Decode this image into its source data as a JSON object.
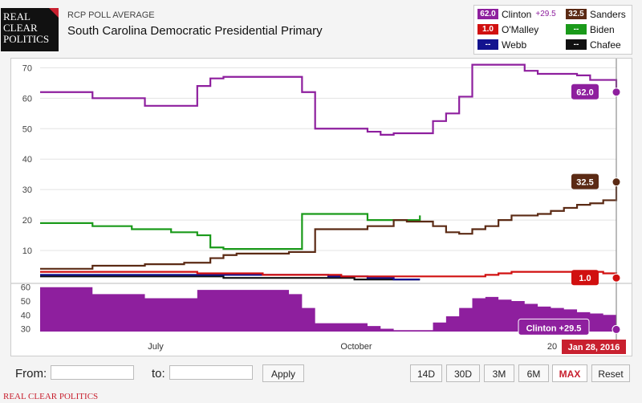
{
  "header": {
    "logo_lines": [
      "REAL",
      "CLEAR",
      "POLITICS"
    ],
    "kicker": "RCP POLL AVERAGE",
    "title": "South Carolina Democratic Presidential Primary"
  },
  "legend": [
    {
      "name": "Clinton",
      "value": "62.0",
      "spread": "+29.5",
      "color": "#8e1f9e"
    },
    {
      "name": "Sanders",
      "value": "32.5",
      "spread": "",
      "color": "#5b2a14"
    },
    {
      "name": "O'Malley",
      "value": "1.0",
      "spread": "",
      "color": "#d11010"
    },
    {
      "name": "Biden",
      "value": "--",
      "spread": "",
      "color": "#1a9a1a"
    },
    {
      "name": "Webb",
      "value": "--",
      "spread": "",
      "color": "#13138f"
    },
    {
      "name": "Chafee",
      "value": "--",
      "spread": "",
      "color": "#111111"
    }
  ],
  "chart_data": [
    {
      "type": "line",
      "title": "",
      "y_ticks": [
        10,
        20,
        30,
        40,
        50,
        60,
        70
      ],
      "ylim": [
        0,
        73
      ],
      "grid": true,
      "x_tick_labels": [
        "July",
        "October",
        "20"
      ],
      "end_badges": [
        "62.0",
        "32.5",
        "1.0"
      ],
      "series": [
        {
          "name": "Clinton",
          "color": "#8e1f9e",
          "values": [
            62,
            62,
            62,
            62,
            60,
            60,
            60,
            60,
            57.5,
            57.5,
            57.5,
            57.5,
            64,
            66.5,
            67,
            67,
            67,
            67,
            67,
            67,
            62,
            50,
            50,
            50,
            50,
            49,
            48,
            48.5,
            48.5,
            48.5,
            52.5,
            55,
            60.5,
            71,
            71,
            71,
            71,
            69,
            68,
            68,
            68,
            67.5,
            66,
            66,
            62
          ]
        },
        {
          "name": "Sanders",
          "color": "#5b2a14",
          "values": [
            4,
            4,
            4,
            4,
            5,
            5,
            5,
            5,
            5.5,
            5.5,
            5.5,
            6,
            6,
            7.5,
            8.5,
            9,
            9,
            9,
            9,
            9.5,
            9.5,
            17,
            17,
            17,
            17,
            18,
            18,
            20,
            19.5,
            19.5,
            18,
            16,
            15.5,
            17,
            18,
            20,
            21.5,
            21.5,
            22,
            23,
            24,
            25,
            25.5,
            26.5,
            32.5
          ]
        },
        {
          "name": "O'Malley",
          "color": "#d11010",
          "values": [
            3,
            3,
            3,
            3,
            3,
            3,
            3,
            3,
            3,
            3,
            3,
            3,
            2.5,
            2.5,
            2.5,
            2.5,
            2.5,
            2,
            2,
            2,
            2,
            2,
            2,
            1.5,
            1.5,
            1.5,
            1.5,
            1.5,
            1.5,
            1.5,
            1.5,
            1.5,
            1.5,
            1.5,
            2,
            2.5,
            3,
            3,
            3,
            3,
            3,
            3,
            3,
            2.5,
            1
          ]
        },
        {
          "name": "Biden",
          "color": "#1a9a1a",
          "values": [
            19,
            19,
            19,
            19,
            18,
            18,
            18,
            17,
            17,
            17,
            16,
            16,
            15,
            11,
            10.5,
            10.5,
            10.5,
            10.5,
            10.5,
            10.5,
            22,
            22,
            22,
            22,
            22,
            20,
            20,
            20,
            20,
            21.5
          ]
        },
        {
          "name": "Webb",
          "color": "#13138f",
          "values": [
            2,
            2,
            2,
            2,
            2,
            2,
            2,
            2,
            2,
            2,
            2,
            2,
            2,
            2,
            2,
            2,
            2,
            2,
            2,
            2,
            2,
            2,
            1.5,
            1.5,
            1.5,
            1,
            1,
            0.5,
            0.5,
            0.5
          ]
        },
        {
          "name": "Chafee",
          "color": "#111111",
          "values": [
            1.5,
            1.5,
            1.5,
            1.5,
            1.5,
            1.5,
            1.5,
            1.5,
            1.5,
            1.5,
            1.5,
            1.5,
            1.5,
            1.5,
            1,
            1,
            1,
            1,
            1,
            1,
            1,
            1,
            1,
            1,
            0.5,
            0.5,
            0.5,
            0.5,
            0.5,
            0.5
          ]
        }
      ]
    },
    {
      "type": "area",
      "title": "",
      "y_ticks": [
        30,
        40,
        50,
        60
      ],
      "ylim": [
        28,
        61
      ],
      "series": [
        {
          "name": "Clinton",
          "color": "#8e1f9e",
          "values": [
            60,
            60,
            60,
            60,
            55,
            55,
            55,
            55,
            52,
            52,
            52,
            52,
            58,
            58,
            58,
            58,
            58,
            58,
            58,
            55,
            45,
            34,
            34,
            34,
            34,
            32,
            30,
            29,
            29,
            29,
            34.5,
            39,
            45,
            52,
            53,
            51,
            50,
            48,
            46,
            45,
            44,
            42,
            41,
            40,
            29.5
          ]
        }
      ],
      "badge": "Clinton +29.5"
    }
  ],
  "date_badge": "Jan 28, 2016",
  "controls": {
    "from_label": "From:",
    "to_label": "to:",
    "apply_label": "Apply",
    "ranges": [
      "14D",
      "30D",
      "3M",
      "6M",
      "MAX",
      "Reset"
    ],
    "active_range": "MAX"
  },
  "footer": "REAL CLEAR POLITICS"
}
